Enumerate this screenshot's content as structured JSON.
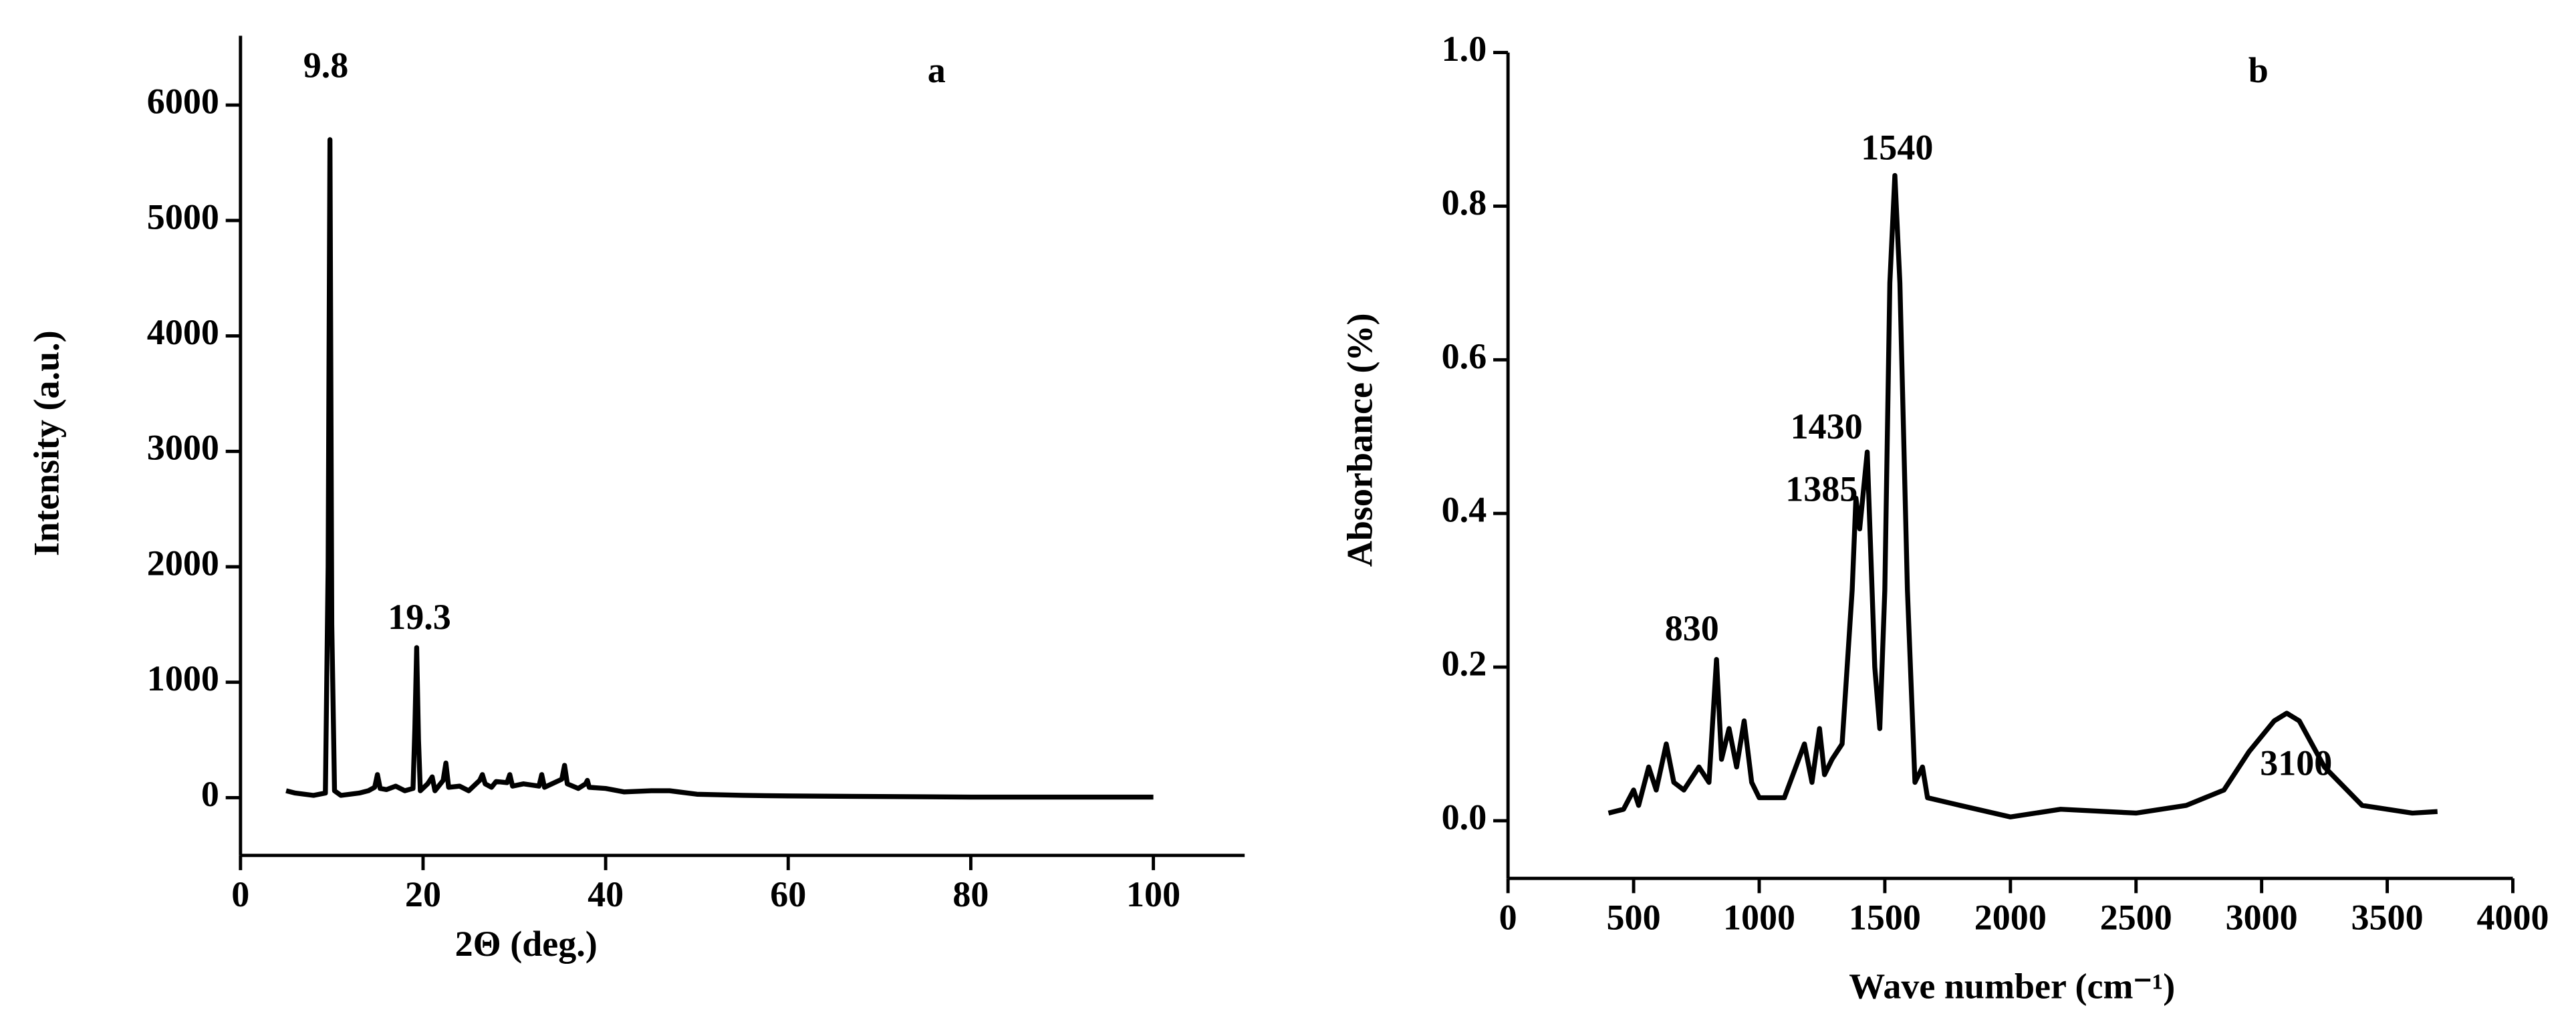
{
  "chart_data": [
    {
      "type": "line",
      "panel": "a",
      "x_label": "2Θ (deg.)",
      "y_label": "Intensity (a.u.)",
      "color": "#000000",
      "xlim": [
        0,
        110
      ],
      "xticks": [
        0,
        20,
        40,
        60,
        80,
        100
      ],
      "ylim": [
        -500,
        6600
      ],
      "yticks": [
        0,
        1000,
        2000,
        3000,
        4000,
        5000,
        6000
      ],
      "x": [
        5,
        6,
        7,
        8,
        9.3,
        9.6,
        9.8,
        10.0,
        10.3,
        11,
        12,
        13,
        14,
        14.7,
        15,
        15.3,
        16,
        17,
        18,
        18.9,
        19.1,
        19.3,
        19.5,
        19.7,
        20.5,
        21,
        21.3,
        21.6,
        22.2,
        22.5,
        22.8,
        24,
        25,
        26.2,
        26.5,
        26.8,
        27.5,
        28,
        29.2,
        29.5,
        29.8,
        31,
        32.7,
        33,
        33.3,
        35.2,
        35.5,
        35.8,
        37,
        37.8,
        38,
        38.2,
        40,
        42,
        45,
        47,
        50,
        55,
        60,
        70,
        80,
        90,
        100
      ],
      "values": [
        60,
        40,
        30,
        20,
        40,
        2000,
        5700,
        1500,
        60,
        20,
        30,
        40,
        60,
        90,
        200,
        80,
        70,
        100,
        60,
        80,
        600,
        1300,
        500,
        60,
        120,
        180,
        60,
        90,
        150,
        300,
        90,
        100,
        60,
        150,
        200,
        120,
        90,
        140,
        130,
        200,
        100,
        120,
        100,
        200,
        90,
        160,
        280,
        120,
        80,
        120,
        150,
        90,
        80,
        50,
        60,
        60,
        30,
        20,
        15,
        10,
        5,
        5,
        5
      ],
      "annotations": [
        "9.8",
        "19.3",
        "a"
      ]
    },
    {
      "type": "line",
      "panel": "b",
      "x_label": "Wave number (cm⁻¹)",
      "y_label": "Absorbance (%)",
      "color": "#000000",
      "xlim": [
        0,
        4000
      ],
      "xticks": [
        0,
        500,
        1000,
        1500,
        2000,
        2500,
        3000,
        3500,
        4000
      ],
      "ylim": [
        -0.075,
        1.0
      ],
      "yticks": [
        {
          "value": 0,
          "label": "0.0"
        },
        0.2,
        0.4,
        0.6,
        0.8,
        {
          "value": 1,
          "label": "1.0"
        }
      ],
      "x": [
        400,
        460,
        500,
        520,
        560,
        590,
        630,
        660,
        700,
        760,
        800,
        830,
        850,
        880,
        910,
        940,
        970,
        1000,
        1100,
        1180,
        1210,
        1240,
        1260,
        1290,
        1330,
        1370,
        1385,
        1400,
        1430,
        1460,
        1480,
        1500,
        1520,
        1540,
        1560,
        1590,
        1620,
        1650,
        1670,
        1800,
        2000,
        2200,
        2500,
        2700,
        2850,
        2950,
        3050,
        3100,
        3150,
        3250,
        3400,
        3600,
        3700
      ],
      "values": [
        0.01,
        0.015,
        0.04,
        0.02,
        0.07,
        0.04,
        0.1,
        0.05,
        0.04,
        0.07,
        0.05,
        0.21,
        0.08,
        0.12,
        0.07,
        0.13,
        0.05,
        0.03,
        0.03,
        0.1,
        0.05,
        0.12,
        0.06,
        0.08,
        0.1,
        0.3,
        0.42,
        0.38,
        0.48,
        0.2,
        0.12,
        0.3,
        0.7,
        0.84,
        0.7,
        0.3,
        0.05,
        0.07,
        0.03,
        0.02,
        0.005,
        0.015,
        0.01,
        0.02,
        0.04,
        0.09,
        0.13,
        0.14,
        0.13,
        0.07,
        0.02,
        0.01,
        0.012
      ],
      "annotations": [
        "1540",
        "1430",
        "1385",
        "830",
        "3100",
        "b"
      ]
    }
  ]
}
